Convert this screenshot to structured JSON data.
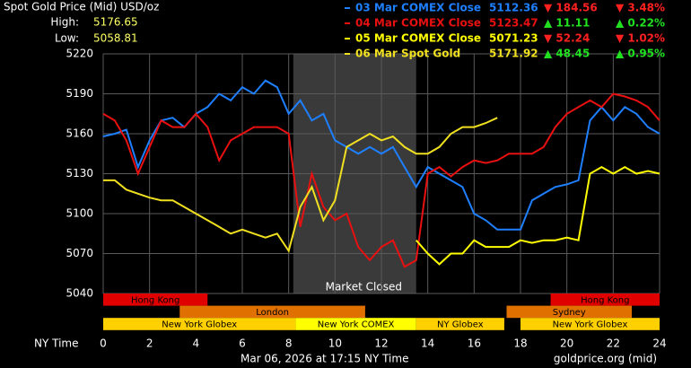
{
  "chart_data": {
    "type": "line",
    "title": "Spot Gold Price (Mid) USD/oz",
    "high_label": "High:",
    "high": 5176.65,
    "low_label": "Low:",
    "low": 5058.81,
    "x_label": "NY Time",
    "footer_left": "Mar 06, 2026 at 17:15 NY Time",
    "footer_right": "goldprice.org (mid)",
    "closed_label": "Market Closed",
    "closed_span": [
      8.2,
      13.5
    ],
    "xlim": [
      0,
      24
    ],
    "xticks": [
      0,
      2,
      4,
      6,
      8,
      10,
      12,
      14,
      16,
      18,
      20,
      22,
      24
    ],
    "ylim": [
      5040,
      5220
    ],
    "yticks": [
      5040,
      5070,
      5100,
      5130,
      5160,
      5190,
      5220
    ],
    "grid": true,
    "x": [
      0,
      0.5,
      1,
      1.5,
      2,
      2.5,
      3,
      3.5,
      4,
      4.5,
      5,
      5.5,
      6,
      6.5,
      7,
      7.5,
      8,
      8.5,
      9,
      9.5,
      10,
      10.5,
      11,
      11.5,
      12,
      12.5,
      13,
      13.5,
      14,
      14.5,
      15,
      15.5,
      16,
      16.5,
      17,
      17.5,
      18,
      18.5,
      19,
      19.5,
      20,
      20.5,
      21,
      21.5,
      22,
      22.5,
      23,
      23.5,
      24
    ],
    "series": [
      {
        "name": "03 Mar COMEX Close",
        "color": "#1e7fff",
        "close": 5112.36,
        "change_label": "▼ 184.56",
        "pct_label": "▼ 3.48%",
        "change_color": "#ff2020",
        "values": [
          5158,
          5160,
          5163,
          5135,
          5155,
          5170,
          5172,
          5165,
          5175,
          5180,
          5190,
          5185,
          5195,
          5190,
          5200,
          5195,
          5175,
          5185,
          5170,
          5175,
          5155,
          5150,
          5145,
          5150,
          5145,
          5150,
          5135,
          5120,
          5135,
          5130,
          5125,
          5120,
          5100,
          5095,
          5088,
          5088,
          5088,
          5110,
          5115,
          5120,
          5122,
          5125,
          5170,
          5180,
          5170,
          5180,
          5175,
          5165,
          5160
        ]
      },
      {
        "name": "04 Mar COMEX Close",
        "color": "#e81010",
        "close": 5123.47,
        "change_label": "▲ 11.11",
        "pct_label": "▲ 0.22%",
        "change_color": "#20e020",
        "values": [
          5175,
          5170,
          5155,
          5130,
          5150,
          5170,
          5165,
          5165,
          5175,
          5165,
          5140,
          5155,
          5160,
          5165,
          5165,
          5165,
          5160,
          5090,
          5130,
          5105,
          5095,
          5100,
          5075,
          5065,
          5075,
          5080,
          5060,
          5065,
          5130,
          5135,
          5128,
          5135,
          5140,
          5138,
          5140,
          5145,
          5145,
          5145,
          5150,
          5165,
          5175,
          5180,
          5185,
          5180,
          5190,
          5188,
          5185,
          5180,
          5170
        ]
      },
      {
        "name": "05 Mar COMEX Close",
        "color": "#ffff00",
        "close": 5071.23,
        "change_label": "▼ 52.24",
        "pct_label": "▼ 1.02%",
        "change_color": "#ff2020",
        "values": [
          null,
          null,
          null,
          null,
          null,
          null,
          null,
          null,
          null,
          null,
          null,
          null,
          null,
          null,
          null,
          null,
          null,
          null,
          null,
          null,
          null,
          null,
          null,
          null,
          null,
          null,
          null,
          5080,
          5070,
          5062,
          5070,
          5070,
          5080,
          5075,
          5075,
          5075,
          5080,
          5078,
          5080,
          5080,
          5082,
          5080,
          5130,
          5135,
          5130,
          5135,
          5130,
          5132,
          5130
        ]
      },
      {
        "name": "06 Mar Spot Gold",
        "color": "#f0e020",
        "close": 5171.92,
        "change_label": "▲ 48.45",
        "pct_label": "▲ 0.95%",
        "change_color": "#20e020",
        "values": [
          5125,
          5125,
          5118,
          5115,
          5112,
          5110,
          5110,
          5105,
          5100,
          5095,
          5090,
          5085,
          5088,
          5085,
          5082,
          5085,
          5072,
          5105,
          5120,
          5095,
          5110,
          5150,
          5155,
          5160,
          5155,
          5158,
          5150,
          5145,
          5145,
          5150,
          5160,
          5165,
          5165,
          5168,
          5172,
          null,
          null,
          null,
          null,
          null,
          null,
          null,
          null,
          null,
          null,
          null,
          null,
          null,
          null
        ]
      }
    ],
    "sessions": [
      {
        "name": "Hong Kong",
        "row": 0,
        "start": 0,
        "end": 4.5,
        "color": "#e00000"
      },
      {
        "name": "Hong Kong",
        "row": 0,
        "start": 19.3,
        "end": 24,
        "color": "#e00000"
      },
      {
        "name": "London",
        "row": 1,
        "start": 3.3,
        "end": 11.3,
        "color": "#e07000"
      },
      {
        "name": "Sydney",
        "row": 1,
        "start": 17.4,
        "end": 22.8,
        "color": "#e07000"
      },
      {
        "name": "New York Globex",
        "row": 2,
        "start": 0,
        "end": 8.3,
        "color": "#ffd000"
      },
      {
        "name": "New York COMEX",
        "row": 2,
        "start": 8.3,
        "end": 13.5,
        "color": "#ffff00"
      },
      {
        "name": "NY Globex",
        "row": 2,
        "start": 13.5,
        "end": 17.3,
        "color": "#ffd000"
      },
      {
        "name": "New York Globex",
        "row": 2,
        "start": 18,
        "end": 24,
        "color": "#ffd000"
      }
    ]
  }
}
